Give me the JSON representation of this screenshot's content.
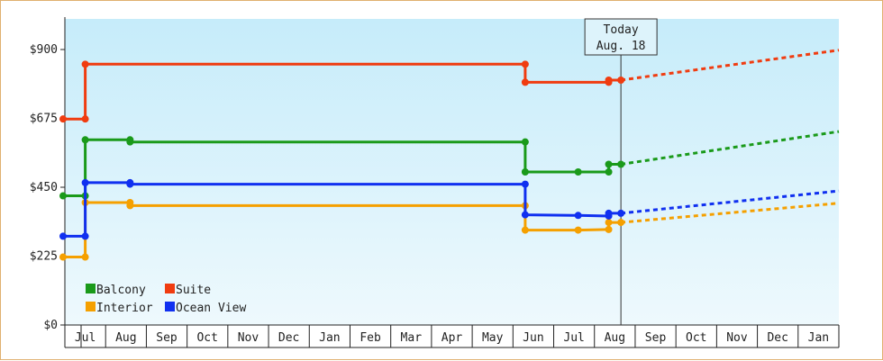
{
  "chart_data": {
    "type": "line",
    "title": "",
    "xlabel": "",
    "ylabel": "",
    "ylim": [
      0,
      1000
    ],
    "y_ticks": [
      {
        "value": 0,
        "label": "$0"
      },
      {
        "value": 225,
        "label": "$225"
      },
      {
        "value": 450,
        "label": "$450"
      },
      {
        "value": 675,
        "label": "$675"
      },
      {
        "value": 900,
        "label": "$900"
      }
    ],
    "x_months": [
      "Jul",
      "Aug",
      "Sep",
      "Oct",
      "Nov",
      "Dec",
      "Jan",
      "Feb",
      "Mar",
      "Apr",
      "May",
      "Jun",
      "Jul",
      "Aug",
      "Sep",
      "Oct",
      "Nov",
      "Dec",
      "Jan"
    ],
    "xlim": [
      -0.5,
      18.5
    ],
    "today": {
      "line1": "Today",
      "line2": "Aug. 18",
      "x": 13.15
    },
    "legend": {
      "placement": "bottom-left"
    },
    "series": [
      {
        "name": "Balcony",
        "color": "#1a9a1a",
        "points": [
          [
            -0.5,
            422
          ],
          [
            0.0,
            422
          ],
          [
            0.0,
            605
          ],
          [
            1.1,
            605
          ],
          [
            1.1,
            598
          ],
          [
            10.8,
            598
          ],
          [
            10.8,
            500
          ],
          [
            12.1,
            500
          ],
          [
            12.85,
            500
          ],
          [
            12.85,
            525
          ],
          [
            13.15,
            525
          ]
        ],
        "forecast": [
          [
            13.15,
            525
          ],
          [
            18.5,
            632
          ]
        ]
      },
      {
        "name": "Suite",
        "color": "#f03c10",
        "points": [
          [
            -0.5,
            673
          ],
          [
            0.0,
            673
          ],
          [
            0.0,
            852
          ],
          [
            10.8,
            852
          ],
          [
            10.8,
            793
          ],
          [
            12.85,
            793
          ],
          [
            12.85,
            800
          ],
          [
            13.15,
            800
          ]
        ],
        "forecast": [
          [
            13.15,
            800
          ],
          [
            18.5,
            898
          ]
        ]
      },
      {
        "name": "Interior",
        "color": "#f5a000",
        "points": [
          [
            -0.5,
            222
          ],
          [
            0.0,
            222
          ],
          [
            0.0,
            400
          ],
          [
            1.1,
            400
          ],
          [
            1.1,
            390
          ],
          [
            10.8,
            390
          ],
          [
            10.8,
            310
          ],
          [
            12.1,
            310
          ],
          [
            12.85,
            312
          ],
          [
            12.85,
            335
          ],
          [
            13.15,
            335
          ]
        ],
        "forecast": [
          [
            13.15,
            335
          ],
          [
            18.5,
            398
          ]
        ]
      },
      {
        "name": "Ocean View",
        "color": "#1030f0",
        "points": [
          [
            -0.5,
            290
          ],
          [
            0.0,
            290
          ],
          [
            0.0,
            465
          ],
          [
            1.1,
            465
          ],
          [
            1.1,
            460
          ],
          [
            10.8,
            460
          ],
          [
            10.8,
            360
          ],
          [
            12.1,
            358
          ],
          [
            12.85,
            356
          ],
          [
            12.85,
            365
          ],
          [
            13.15,
            365
          ]
        ],
        "forecast": [
          [
            13.15,
            365
          ],
          [
            18.5,
            438
          ]
        ]
      }
    ]
  }
}
